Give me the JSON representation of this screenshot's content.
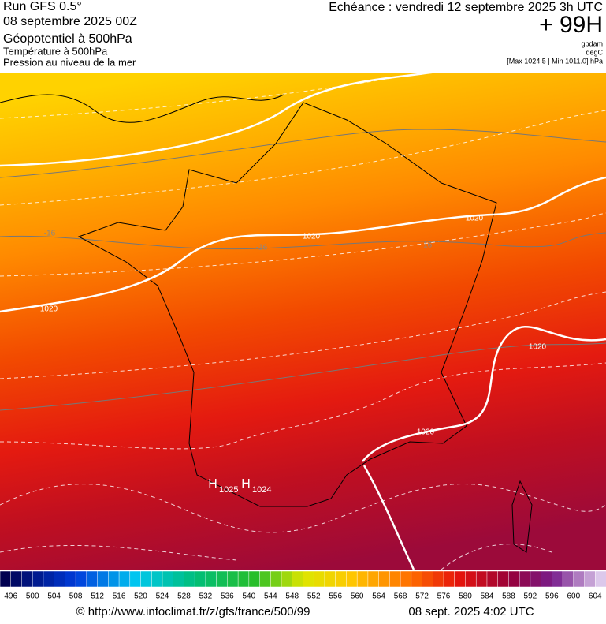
{
  "header": {
    "run": "Run GFS 0.5°",
    "date": "08 septembre 2025 00Z",
    "field1": "Géopotentiel à 500hPa",
    "field2": "Température à 500hPa",
    "field3": "Pression au niveau de la mer",
    "echeance": "Echéance : vendredi 12 septembre 2025 3h UTC",
    "lead": "+ 99H",
    "unit1": "gpdam",
    "unit2": "degC",
    "unit3": "[Max 1024.5 | Min 1011.0] hPa"
  },
  "map": {
    "isobar_labels": [
      1020,
      1020,
      1020,
      1020,
      1020
    ],
    "temp_labels": [
      -16,
      -16,
      -16
    ],
    "highs": [
      {
        "symbol": "H",
        "value": 1025
      },
      {
        "symbol": "H",
        "value": 1024
      }
    ]
  },
  "colorbar": {
    "labels": [
      496,
      500,
      504,
      508,
      512,
      516,
      520,
      524,
      528,
      532,
      536,
      540,
      544,
      548,
      552,
      556,
      560,
      564,
      568,
      572,
      576,
      580,
      584,
      588,
      592,
      596,
      600,
      604
    ]
  },
  "footer": {
    "url": "© http://www.infoclimat.fr/z/gfs/france/500/99",
    "time": "08 sept. 2025  4:02 UTC"
  }
}
